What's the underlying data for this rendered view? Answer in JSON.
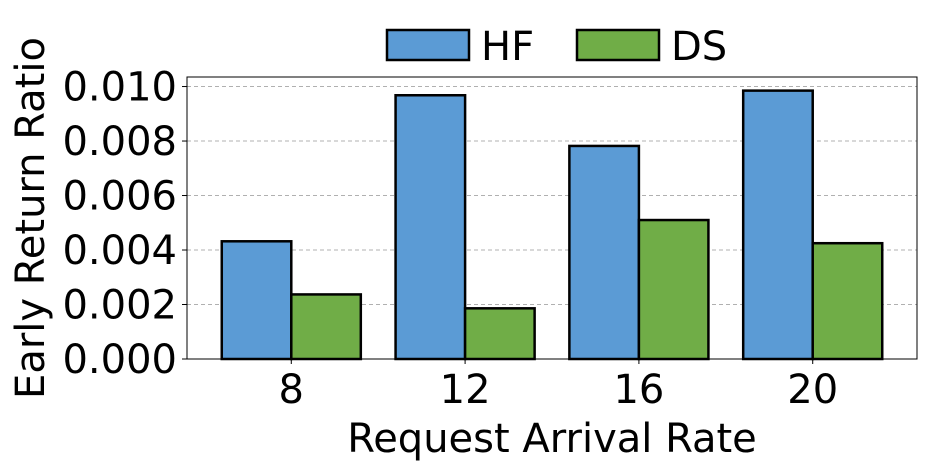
{
  "chart_data": {
    "type": "bar",
    "categories": [
      "8",
      "12",
      "16",
      "20"
    ],
    "series": [
      {
        "name": "HF",
        "values": [
          0.00432,
          0.00968,
          0.00782,
          0.00985
        ],
        "color": "#5b9bd5"
      },
      {
        "name": "DS",
        "values": [
          0.00237,
          0.00186,
          0.0051,
          0.00425
        ],
        "color": "#70ad47"
      }
    ],
    "xlabel": "Request Arrival Rate",
    "ylabel": "Early Return Ratio",
    "ylim": [
      0,
      0.01035
    ],
    "yticks": [
      "0.000",
      "0.002",
      "0.004",
      "0.006",
      "0.008",
      "0.010"
    ],
    "ytick_values": [
      0,
      0.002,
      0.004,
      0.006,
      0.008,
      0.01
    ],
    "grid": "horizontal dashed",
    "legend_position": "top-center"
  }
}
